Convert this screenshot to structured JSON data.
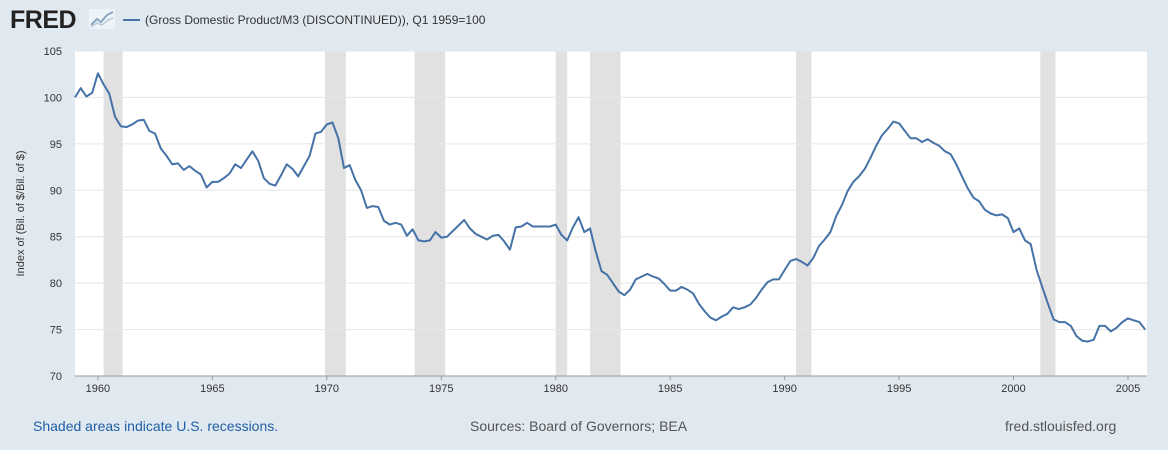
{
  "header": {
    "logo_text": "FRED",
    "legend_label": "(Gross Domestic Product/M3 (DISCONTINUED)), Q1 1959=100"
  },
  "footer": {
    "recession_note": "Shaded areas indicate U.S. recessions.",
    "sources": "Sources: Board of Governors; BEA",
    "site": "fred.stlouisfed.org"
  },
  "colors": {
    "background": "#e1e9f0",
    "plot_background": "#ffffff",
    "series_line": "#4572a7",
    "recession_shade": "#e1e1e1",
    "gridline": "#e6e6e6",
    "logo": "#222222"
  },
  "chart_data": {
    "type": "line",
    "ylabel": "Index of (Bil. of $/Bil. of $)",
    "xlabel": "",
    "xlim": [
      1959.0,
      2005.83
    ],
    "ylim": [
      70,
      105
    ],
    "x_ticks": [
      1960,
      1965,
      1970,
      1975,
      1980,
      1985,
      1990,
      1995,
      2000,
      2005
    ],
    "x_tick_labels": [
      "1960",
      "1965",
      "1970",
      "1975",
      "1980",
      "1985",
      "1990",
      "1995",
      "2000",
      "2005"
    ],
    "y_ticks": [
      70,
      75,
      80,
      85,
      90,
      95,
      100,
      105
    ],
    "y_tick_labels": [
      "70",
      "75",
      "80",
      "85",
      "90",
      "95",
      "100",
      "105"
    ],
    "grid": true,
    "legend_position": "top-left",
    "recessions": [
      [
        1960.25,
        1961.08
      ],
      [
        1969.92,
        1970.83
      ],
      [
        1973.83,
        1975.17
      ],
      [
        1980.0,
        1980.5
      ],
      [
        1981.5,
        1982.83
      ],
      [
        1990.5,
        1991.17
      ],
      [
        2001.17,
        2001.83
      ]
    ],
    "series": [
      {
        "name": "(Gross Domestic Product/M3 (DISCONTINUED)), Q1 1959=100",
        "x": [
          1959.0,
          1959.25,
          1959.5,
          1959.75,
          1960.0,
          1960.25,
          1960.5,
          1960.75,
          1961.0,
          1961.25,
          1961.5,
          1961.75,
          1962.0,
          1962.25,
          1962.5,
          1962.75,
          1963.0,
          1963.25,
          1963.5,
          1963.75,
          1964.0,
          1964.25,
          1964.5,
          1964.75,
          1965.0,
          1965.25,
          1965.5,
          1965.75,
          1966.0,
          1966.25,
          1966.5,
          1966.75,
          1967.0,
          1967.25,
          1967.5,
          1967.75,
          1968.0,
          1968.25,
          1968.5,
          1968.75,
          1969.0,
          1969.25,
          1969.5,
          1969.75,
          1970.0,
          1970.25,
          1970.5,
          1970.75,
          1971.0,
          1971.25,
          1971.5,
          1971.75,
          1972.0,
          1972.25,
          1972.5,
          1972.75,
          1973.0,
          1973.25,
          1973.5,
          1973.75,
          1974.0,
          1974.25,
          1974.5,
          1974.75,
          1975.0,
          1975.25,
          1975.5,
          1975.75,
          1976.0,
          1976.25,
          1976.5,
          1976.75,
          1977.0,
          1977.25,
          1977.5,
          1977.75,
          1978.0,
          1978.25,
          1978.5,
          1978.75,
          1979.0,
          1979.25,
          1979.5,
          1979.75,
          1980.0,
          1980.25,
          1980.5,
          1980.75,
          1981.0,
          1981.25,
          1981.5,
          1981.75,
          1982.0,
          1982.25,
          1982.5,
          1982.75,
          1983.0,
          1983.25,
          1983.5,
          1983.75,
          1984.0,
          1984.25,
          1984.5,
          1984.75,
          1985.0,
          1985.25,
          1985.5,
          1985.75,
          1986.0,
          1986.25,
          1986.5,
          1986.75,
          1987.0,
          1987.25,
          1987.5,
          1987.75,
          1988.0,
          1988.25,
          1988.5,
          1988.75,
          1989.0,
          1989.25,
          1989.5,
          1989.75,
          1990.0,
          1990.25,
          1990.5,
          1990.75,
          1991.0,
          1991.25,
          1991.5,
          1991.75,
          1992.0,
          1992.25,
          1992.5,
          1992.75,
          1993.0,
          1993.25,
          1993.5,
          1993.75,
          1994.0,
          1994.25,
          1994.5,
          1994.75,
          1995.0,
          1995.25,
          1995.5,
          1995.75,
          1996.0,
          1996.25,
          1996.5,
          1996.75,
          1997.0,
          1997.25,
          1997.5,
          1997.75,
          1998.0,
          1998.25,
          1998.5,
          1998.75,
          1999.0,
          1999.25,
          1999.5,
          1999.75,
          2000.0,
          2000.25,
          2000.5,
          2000.75,
          2001.0,
          2001.25,
          2001.5,
          2001.75,
          2002.0,
          2002.25,
          2002.5,
          2002.75,
          2003.0,
          2003.25,
          2003.5,
          2003.75,
          2004.0,
          2004.25,
          2004.5,
          2004.75,
          2005.0,
          2005.25,
          2005.5,
          2005.75
        ],
        "values": [
          100.0,
          101.0,
          100.1,
          100.5,
          102.6,
          101.4,
          100.4,
          97.9,
          96.9,
          96.8,
          97.1,
          97.5,
          97.6,
          96.4,
          96.1,
          94.5,
          93.7,
          92.8,
          92.9,
          92.2,
          92.6,
          92.1,
          91.7,
          90.3,
          90.9,
          90.9,
          91.3,
          91.8,
          92.8,
          92.4,
          93.3,
          94.2,
          93.2,
          91.3,
          90.7,
          90.5,
          91.6,
          92.8,
          92.3,
          91.5,
          92.6,
          93.7,
          96.1,
          96.3,
          97.1,
          97.3,
          95.6,
          92.4,
          92.7,
          91.1,
          90.0,
          88.1,
          88.3,
          88.2,
          86.7,
          86.3,
          86.5,
          86.3,
          85.1,
          85.8,
          84.6,
          84.5,
          84.6,
          85.5,
          84.9,
          85.0,
          85.6,
          86.2,
          86.8,
          85.9,
          85.3,
          85.0,
          84.7,
          85.1,
          85.2,
          84.5,
          83.6,
          86.0,
          86.1,
          86.5,
          86.1,
          86.1,
          86.1,
          86.1,
          86.3,
          85.2,
          84.6,
          86.0,
          87.1,
          85.5,
          85.9,
          83.4,
          81.3,
          80.9,
          80.0,
          79.1,
          78.7,
          79.3,
          80.4,
          80.7,
          81.0,
          80.7,
          80.5,
          79.9,
          79.2,
          79.2,
          79.6,
          79.3,
          78.9,
          77.8,
          77.0,
          76.3,
          76.0,
          76.4,
          76.7,
          77.4,
          77.2,
          77.4,
          77.7,
          78.4,
          79.3,
          80.1,
          80.4,
          80.4,
          81.4,
          82.4,
          82.6,
          82.3,
          81.9,
          82.7,
          84.0,
          84.7,
          85.5,
          87.2,
          88.4,
          89.9,
          90.9,
          91.5,
          92.3,
          93.5,
          94.8,
          95.9,
          96.6,
          97.4,
          97.2,
          96.4,
          95.6,
          95.6,
          95.2,
          95.5,
          95.1,
          94.8,
          94.2,
          93.9,
          92.8,
          91.5,
          90.2,
          89.2,
          88.8,
          87.9,
          87.5,
          87.3,
          87.4,
          87.0,
          85.5,
          85.9,
          84.6,
          84.2,
          81.5,
          79.6,
          77.8,
          76.1,
          75.8,
          75.8,
          75.4,
          74.3,
          73.8,
          73.7,
          73.9,
          75.4,
          75.4,
          74.8,
          75.2,
          75.8,
          76.2,
          76.0,
          75.8,
          75.0
        ]
      }
    ]
  }
}
